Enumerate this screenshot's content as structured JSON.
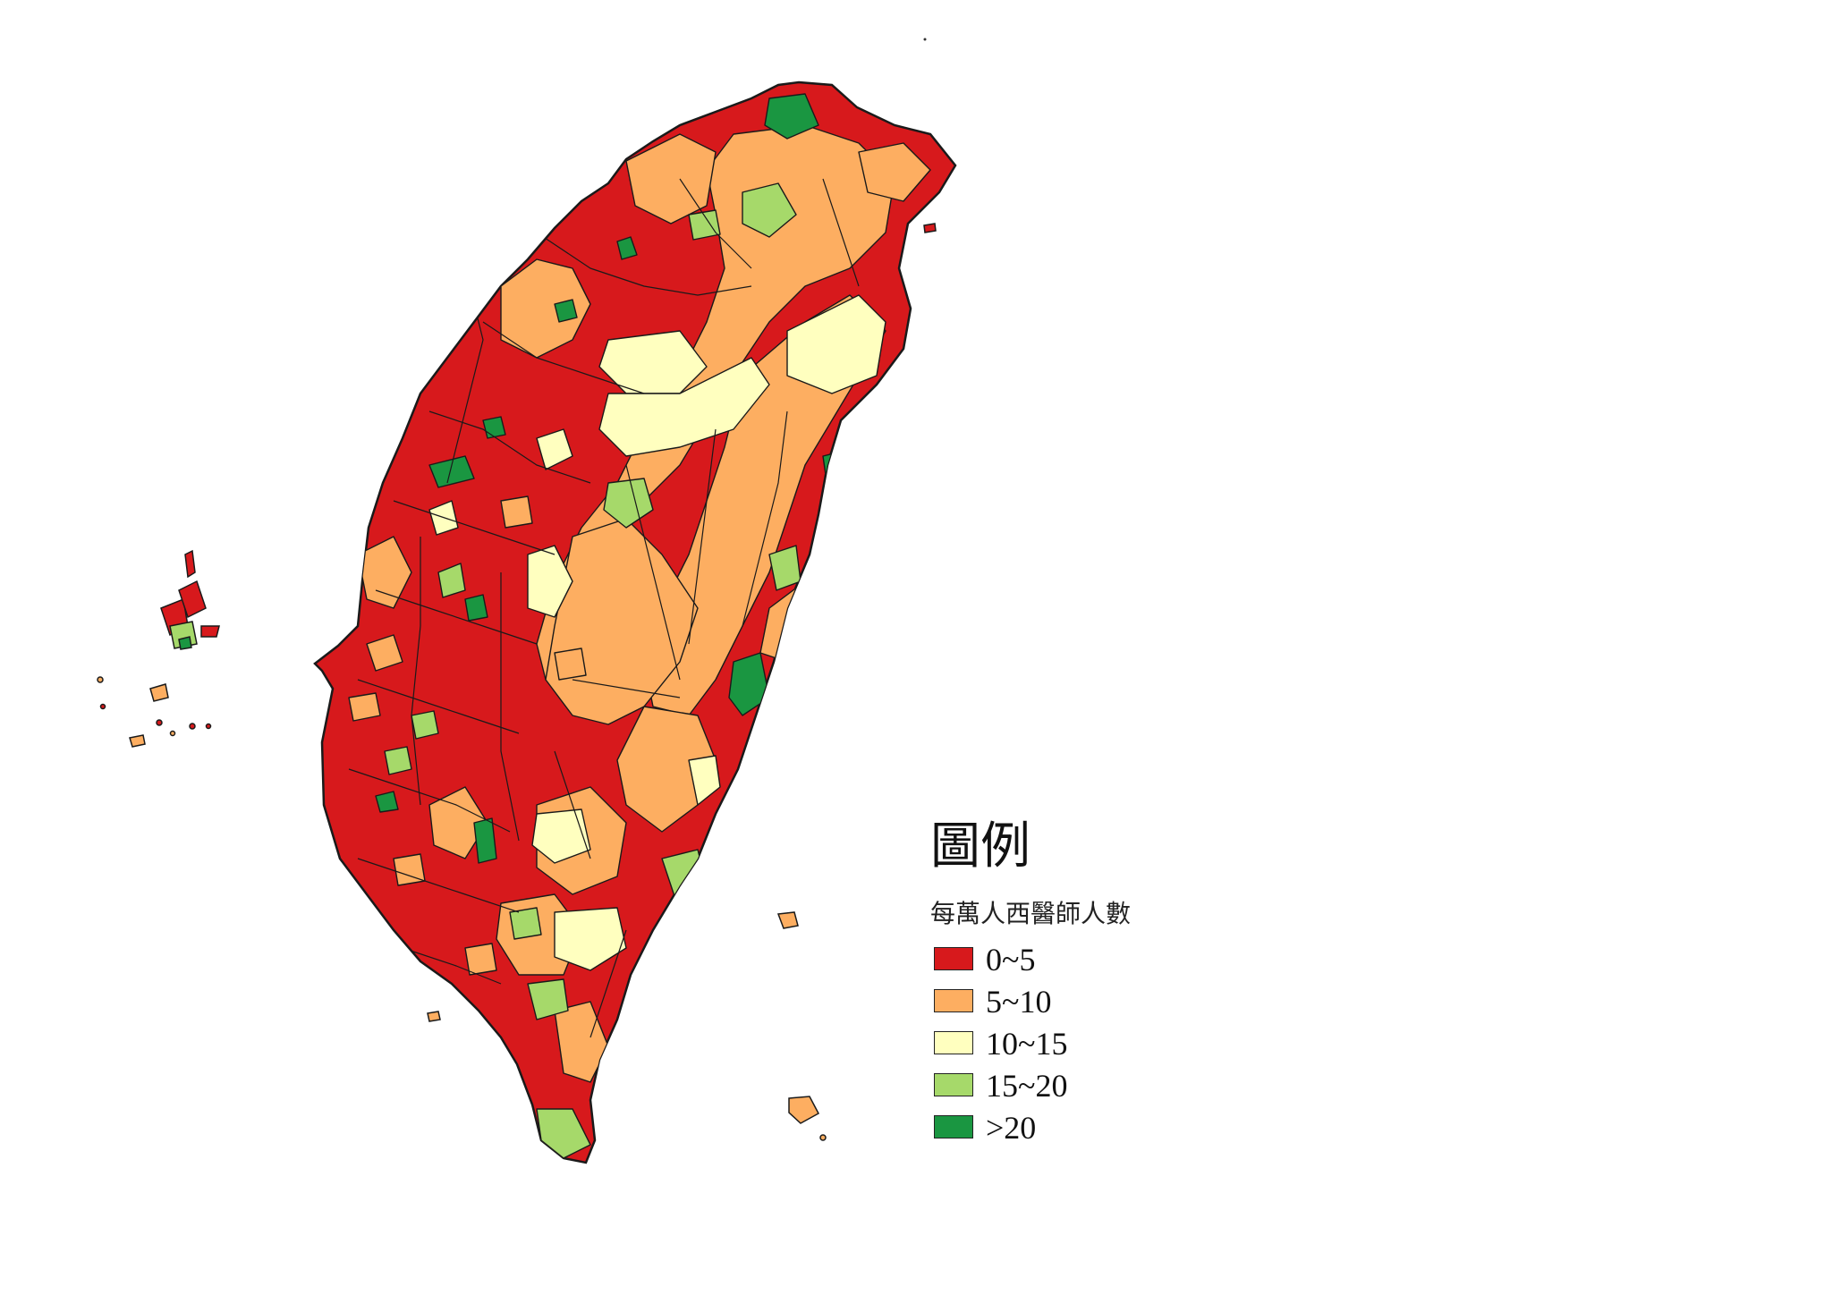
{
  "legend": {
    "title": "圖例",
    "subtitle": "每萬人西醫師人數",
    "classes": [
      {
        "label": "0~5",
        "color": "#d7191c"
      },
      {
        "label": "5~10",
        "color": "#fdae61"
      },
      {
        "label": "10~15",
        "color": "#ffffbf"
      },
      {
        "label": "15~20",
        "color": "#a6d96a"
      },
      {
        "label": ">20",
        "color": "#1a9641"
      }
    ]
  },
  "colors": {
    "background": "#ffffff",
    "outline": "#1a1a1a"
  }
}
